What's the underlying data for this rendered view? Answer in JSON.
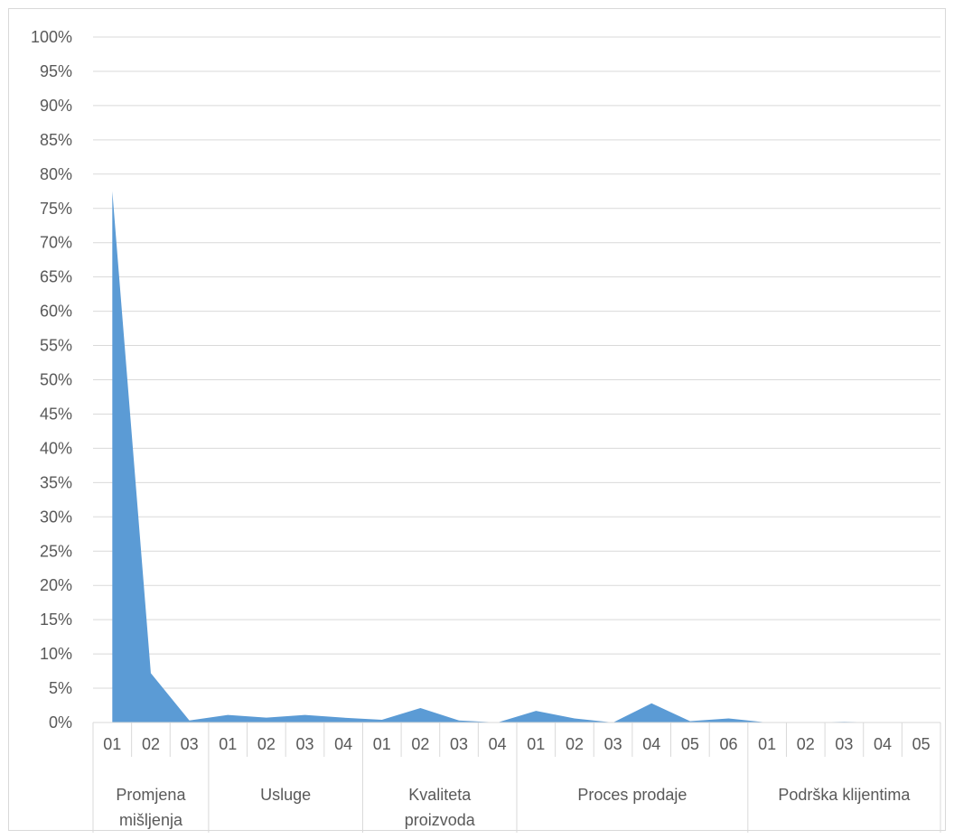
{
  "chart_data": {
    "type": "area",
    "title": "",
    "xlabel": "",
    "ylabel": "",
    "ylim": [
      0,
      1
    ],
    "y_ticks": [
      "0%",
      "5%",
      "10%",
      "15%",
      "20%",
      "25%",
      "30%",
      "35%",
      "40%",
      "45%",
      "50%",
      "55%",
      "60%",
      "65%",
      "70%",
      "75%",
      "80%",
      "85%",
      "90%",
      "95%",
      "100%"
    ],
    "grid": true,
    "legend": "none",
    "color": "#5b9bd5",
    "groups": [
      {
        "label": "Promjena mišljenja",
        "label_lines": [
          "Promjena",
          "mišljenja"
        ],
        "categories": [
          "01",
          "02",
          "03"
        ]
      },
      {
        "label": "Usluge",
        "label_lines": [
          "Usluge"
        ],
        "categories": [
          "01",
          "02",
          "03",
          "04"
        ]
      },
      {
        "label": "Kvaliteta proizvoda",
        "label_lines": [
          "Kvaliteta",
          "proizvoda"
        ],
        "categories": [
          "01",
          "02",
          "03",
          "04"
        ]
      },
      {
        "label": "Proces prodaje",
        "label_lines": [
          "Proces prodaje"
        ],
        "categories": [
          "01",
          "02",
          "03",
          "04",
          "05",
          "06"
        ]
      },
      {
        "label": "Podrška klijentima",
        "label_lines": [
          "Podrška klijentima"
        ],
        "categories": [
          "01",
          "02",
          "03",
          "04",
          "05"
        ]
      }
    ],
    "values": [
      0.775,
      0.072,
      0.003,
      0.011,
      0.007,
      0.011,
      0.007,
      0.004,
      0.021,
      0.003,
      0.0,
      0.017,
      0.006,
      0.0,
      0.028,
      0.002,
      0.006,
      0.0,
      0.0,
      0.001,
      0.0,
      0.0
    ]
  }
}
